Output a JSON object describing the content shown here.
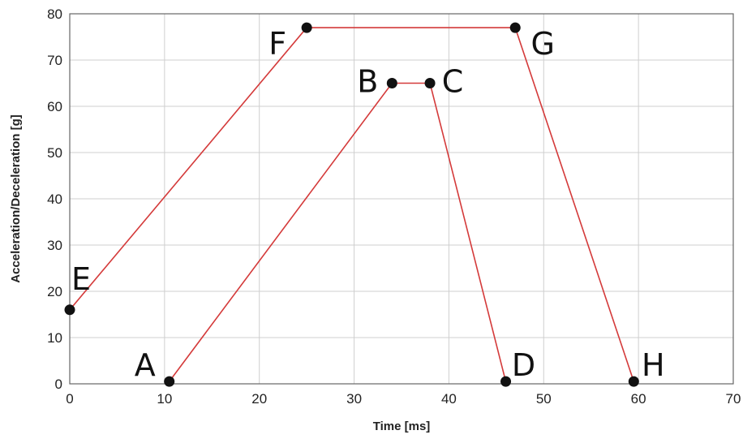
{
  "chart_data": {
    "type": "line",
    "xlabel": "Time [ms]",
    "ylabel": "Acceleration/Deceleration [g]",
    "xlim": [
      0,
      70
    ],
    "ylim": [
      0,
      80
    ],
    "xticks": [
      "0",
      "10",
      "20",
      "30",
      "40",
      "50",
      "60",
      "70"
    ],
    "yticks": [
      "0",
      "10",
      "20",
      "30",
      "40",
      "50",
      "60",
      "70",
      "80"
    ],
    "grid": true,
    "line_color": "#d43a3a",
    "marker_color": "#111111",
    "series": [
      {
        "points": [
          {
            "label": "A",
            "x": 10.5,
            "y": 0.5
          },
          {
            "label": "B",
            "x": 34,
            "y": 65
          },
          {
            "label": "C",
            "x": 38,
            "y": 65
          },
          {
            "label": "D",
            "x": 46,
            "y": 0.5
          }
        ]
      },
      {
        "points": [
          {
            "label": "E",
            "x": 0,
            "y": 16
          },
          {
            "label": "F",
            "x": 25,
            "y": 77
          },
          {
            "label": "G",
            "x": 47,
            "y": 77
          },
          {
            "label": "H",
            "x": 59.5,
            "y": 0.5
          }
        ]
      }
    ]
  }
}
